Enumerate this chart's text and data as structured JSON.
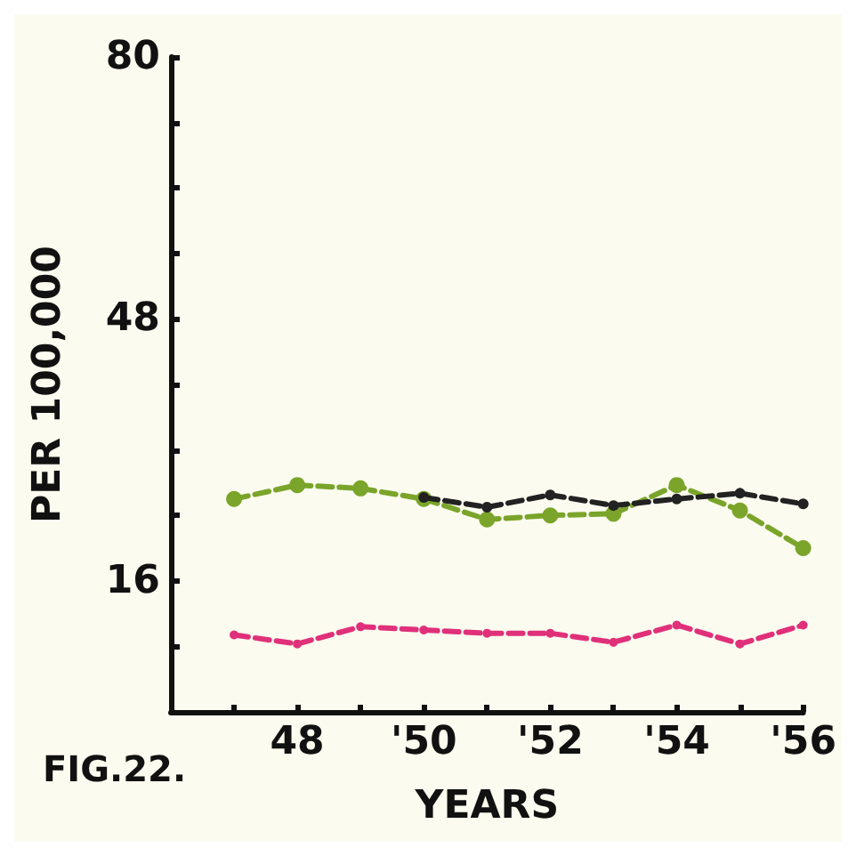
{
  "chart_data": {
    "type": "line",
    "ylabel": "PER 100,000",
    "xlabel": "YEARS",
    "annotations": [
      "FIG.22."
    ],
    "xlim": [
      1946,
      1956
    ],
    "ylim": [
      0,
      80
    ],
    "xticks": [
      {
        "value": 1947,
        "label": null
      },
      {
        "value": 1948,
        "label": "48"
      },
      {
        "value": 1949,
        "label": null
      },
      {
        "value": 1950,
        "label": "'50"
      },
      {
        "value": 1951,
        "label": null
      },
      {
        "value": 1952,
        "label": "'52"
      },
      {
        "value": 1953,
        "label": null
      },
      {
        "value": 1954,
        "label": "'54"
      },
      {
        "value": 1955,
        "label": null
      },
      {
        "value": 1956,
        "label": "'56"
      }
    ],
    "yticks": [
      {
        "value": 8,
        "label": null
      },
      16,
      {
        "value": 24,
        "label": null
      },
      {
        "value": 32,
        "label": null
      },
      {
        "value": 40,
        "label": null
      },
      48,
      {
        "value": 56,
        "label": null
      },
      {
        "value": 64,
        "label": null
      },
      {
        "value": 72,
        "label": null
      },
      80
    ],
    "x": [
      1947,
      1948,
      1949,
      1950,
      1951,
      1952,
      1953,
      1954,
      1955,
      1956
    ],
    "series": [
      {
        "color": "#7aa52a",
        "values": [
          26,
          27.7,
          27.3,
          26,
          23.5,
          24,
          24.2,
          27.7,
          24.6,
          20
        ]
      },
      {
        "color": "#222222",
        "values": [
          null,
          null,
          null,
          26.2,
          25,
          26.5,
          25.2,
          26,
          26.7,
          25.4
        ]
      },
      {
        "color": "#e0307a",
        "values": [
          9.4,
          8.3,
          10.4,
          10,
          9.6,
          9.6,
          8.5,
          10.6,
          8.3,
          10.6
        ]
      }
    ],
    "marker": "circle",
    "line_style": "dashed"
  }
}
